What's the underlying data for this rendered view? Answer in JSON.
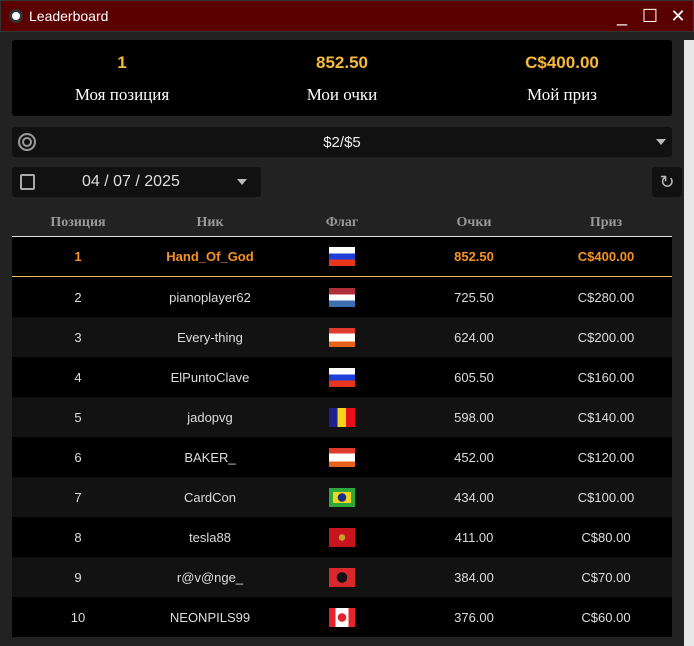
{
  "window": {
    "title": "Leaderboard",
    "minimize": "_",
    "maximize": "☐",
    "close": "✕"
  },
  "summary": [
    {
      "value": "1",
      "label": "Моя позиция"
    },
    {
      "value": "852.50",
      "label": "Мои очки"
    },
    {
      "value": "C$400.00",
      "label": "Мой приз"
    }
  ],
  "stakes": {
    "selected": "$2/$5"
  },
  "date": {
    "value": "04 / 07 / 2025"
  },
  "refresh_icon": "↻",
  "table": {
    "headers": [
      "Позиция",
      "Ник",
      "Флаг",
      "Очки",
      "Приз"
    ],
    "rows": [
      {
        "pos": "1",
        "nick": "Hand_Of_God",
        "flag": "ru",
        "points": "852.50",
        "prize": "C$400.00",
        "me": true
      },
      {
        "pos": "2",
        "nick": "pianoplayer62",
        "flag": "nl",
        "points": "725.50",
        "prize": "C$280.00"
      },
      {
        "pos": "3",
        "nick": "Every-thing",
        "flag": "at",
        "points": "624.00",
        "prize": "C$200.00"
      },
      {
        "pos": "4",
        "nick": "ElPuntoClave",
        "flag": "ru",
        "points": "605.50",
        "prize": "C$160.00"
      },
      {
        "pos": "5",
        "nick": "jadopvg",
        "flag": "ad",
        "points": "598.00",
        "prize": "C$140.00"
      },
      {
        "pos": "6",
        "nick": "BAKER_",
        "flag": "at",
        "points": "452.00",
        "prize": "C$120.00"
      },
      {
        "pos": "7",
        "nick": "CardCon",
        "flag": "br",
        "points": "434.00",
        "prize": "C$100.00"
      },
      {
        "pos": "8",
        "nick": "tesla88",
        "flag": "me",
        "points": "411.00",
        "prize": "C$80.00"
      },
      {
        "pos": "9",
        "nick": "r@v@nge_",
        "flag": "al",
        "points": "384.00",
        "prize": "C$70.00"
      },
      {
        "pos": "10",
        "nick": "NEONPILS99",
        "flag": "ca",
        "points": "376.00",
        "prize": "C$60.00"
      }
    ]
  }
}
